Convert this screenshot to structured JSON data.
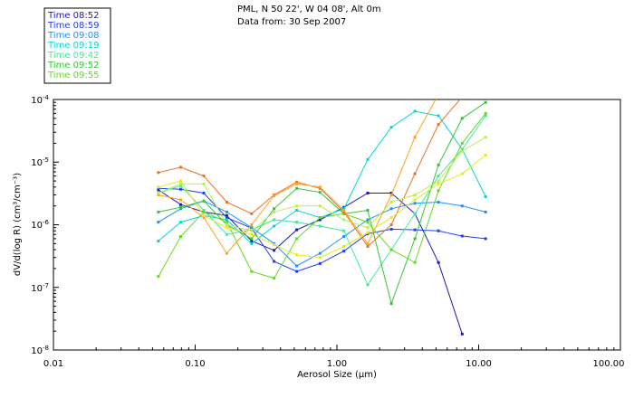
{
  "chart_data": {
    "type": "line",
    "title_lines": [
      "PML, N 50 22', W 04 08', Alt 0m",
      "Data from: 30 Sep 2007"
    ],
    "xlabel": "Aerosol Size (μm)",
    "ylabel": "dV/d(log R) (cm³/cm⁻³)",
    "x_scale": "log",
    "y_scale": "log",
    "xlim": [
      0.01,
      100
    ],
    "ylim": [
      1e-08,
      0.0001
    ],
    "x_tick_labels": [
      "0.01",
      "0.10",
      "1.00",
      "10.00",
      "100.00"
    ],
    "y_tick_labels": [
      {
        "base": "10",
        "exp": "-4"
      },
      {
        "base": "10",
        "exp": "-5"
      },
      {
        "base": "10",
        "exp": "-6"
      },
      {
        "base": "10",
        "exp": "-7"
      },
      {
        "base": "10",
        "exp": "-8"
      }
    ],
    "legend_position": "top-left",
    "grid": false,
    "x": [
      0.055,
      0.079,
      0.115,
      0.167,
      0.25,
      0.36,
      0.52,
      0.76,
      1.12,
      1.65,
      2.42,
      3.55,
      5.2,
      7.65,
      11.2
    ],
    "series": [
      {
        "name": "Time 08:52",
        "color": "#1a1ab3",
        "values": [
          3.6e-06,
          2.1e-06,
          1.6e-06,
          1.4e-06,
          5.5e-07,
          3.9e-07,
          8.3e-07,
          1.2e-06,
          1.9e-06,
          3.2e-06,
          3.2e-06,
          1.5e-06,
          2.5e-07,
          1.8e-08,
          null
        ]
      },
      {
        "name": "Time 08:59",
        "color": "#2040ee",
        "values": [
          3.8e-06,
          3.7e-06,
          3.2e-06,
          1.3e-06,
          8.8e-07,
          2.6e-07,
          1.8e-07,
          2.4e-07,
          3.8e-07,
          7.2e-07,
          8.5e-07,
          8.3e-07,
          8e-07,
          6.6e-07,
          6e-07
        ]
      },
      {
        "name": "Time 09:08",
        "color": "#1e90ff",
        "values": [
          1.1e-06,
          1.8e-06,
          2.4e-06,
          1.6e-06,
          9e-07,
          5e-07,
          2.2e-07,
          3.5e-07,
          6.5e-07,
          1.2e-06,
          1.8e-06,
          2.2e-06,
          2.3e-06,
          2e-06,
          1.6e-06
        ]
      },
      {
        "name": "Time 09:19",
        "color": "#00d8d8",
        "values": [
          5.5e-07,
          1.1e-06,
          1.4e-06,
          1.2e-06,
          5e-07,
          9.5e-07,
          1.7e-06,
          1.3e-06,
          1.8e-06,
          1.1e-05,
          3.6e-05,
          6.5e-05,
          5.5e-05,
          1.6e-05,
          2.8e-06
        ]
      },
      {
        "name": "Time 09:42",
        "color": "#40e8a0",
        "values": [
          3.2e-06,
          4.2e-06,
          1.7e-06,
          7e-07,
          8.3e-07,
          1.2e-06,
          1.1e-06,
          9.5e-07,
          8e-07,
          1.1e-07,
          4e-07,
          1.5e-06,
          6e-06,
          1.6e-05,
          5.5e-05
        ]
      },
      {
        "name": "Time 09:52",
        "color": "#30c830",
        "values": [
          1.6e-06,
          1.9e-06,
          2.4e-06,
          1e-06,
          6e-07,
          1.8e-06,
          3.8e-06,
          3.3e-06,
          1.5e-06,
          1.7e-06,
          5.5e-08,
          6e-07,
          9e-06,
          5e-05,
          9e-05
        ]
      },
      {
        "name": "Time 09:55",
        "color": "#60dc20",
        "values": [
          1.5e-07,
          6.5e-07,
          1.6e-06,
          1.1e-06,
          1.8e-07,
          1.4e-07,
          6e-07,
          1.3e-06,
          1.5e-06,
          1.1e-06,
          4e-07,
          2.5e-07,
          3.5e-06,
          2e-05,
          6e-05
        ]
      },
      {
        "name": "",
        "color": "#ee7020",
        "values": [
          6.8e-06,
          8.3e-06,
          6e-06,
          2.3e-06,
          1.5e-06,
          3e-06,
          4.8e-06,
          3.8e-06,
          1.6e-06,
          4.5e-07,
          1e-06,
          6.5e-06,
          4e-05,
          0.00011,
          null
        ]
      },
      {
        "name": "",
        "color": "#ffa020",
        "values": [
          3e-06,
          2.5e-06,
          1.3e-06,
          3.5e-07,
          1e-06,
          2.9e-06,
          4.5e-06,
          4e-06,
          1.7e-06,
          5e-07,
          3e-06,
          2.5e-05,
          0.00012,
          null,
          null
        ]
      },
      {
        "name": "",
        "color": "#e8e820",
        "values": [
          4e-06,
          5e-06,
          1.4e-06,
          9e-07,
          7e-07,
          4.8e-07,
          3.3e-07,
          3e-07,
          4.5e-07,
          7.5e-07,
          1.3e-06,
          2.5e-06,
          4.5e-06,
          6.5e-06,
          1.3e-05
        ]
      },
      {
        "name": "",
        "color": "#b8ee50",
        "values": [
          3.2e-06,
          4.5e-06,
          4.5e-06,
          1e-06,
          8e-07,
          1.6e-06,
          2e-06,
          2e-06,
          1.2e-06,
          9e-07,
          2.3e-06,
          3e-06,
          5e-06,
          1.5e-05,
          2.5e-05
        ]
      }
    ]
  }
}
